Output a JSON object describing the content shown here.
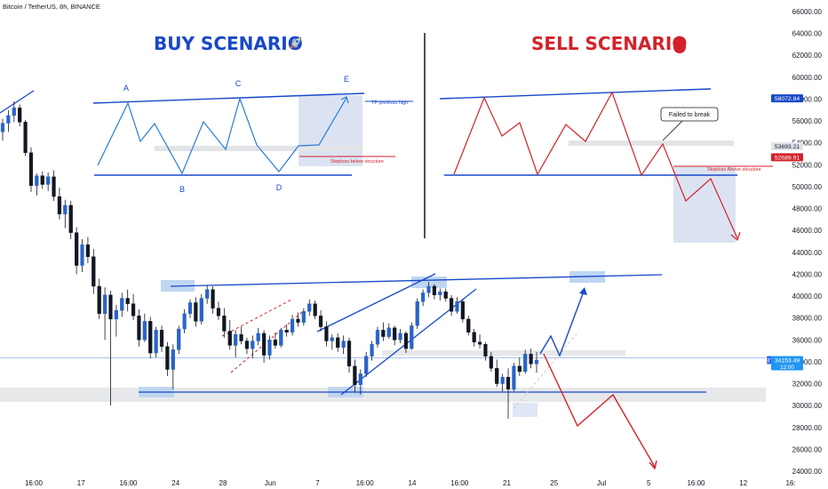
{
  "header": {
    "symbol_title": "Bitcoin / TetherUS, 8h, BINANCE"
  },
  "buy_scenario": {
    "title": "BUY SCENARIO",
    "icon": "rocket-icon",
    "color": "#1848c9",
    "point_labels": [
      "A",
      "B",
      "C",
      "D",
      "E"
    ],
    "tp_label": "TP previous high",
    "stop_label": "Stoploss below structure"
  },
  "sell_scenario": {
    "title": "SELL SCENARIO",
    "icon": "blood-drop-icon",
    "color": "#d3222a",
    "callout": "Failed to break",
    "stop_label": "Stoploss Above structure"
  },
  "price_axis": {
    "ticks": [
      "66000.00",
      "64000.00",
      "62000.00",
      "60000.00",
      "58000.00",
      "56000.00",
      "54000.00",
      "52000.00",
      "50000.00",
      "48000.00",
      "46000.00",
      "44000.00",
      "42000.00",
      "40000.00",
      "38000.00",
      "36000.00",
      "34000.00",
      "32000.00",
      "30000.00",
      "28000.00",
      "26000.00",
      "24000.00"
    ],
    "badges": [
      {
        "id": "level-58072",
        "text": "58072.84",
        "bg": "#1848c9",
        "fg": "#ffffff"
      },
      {
        "id": "level-53693",
        "text": "53693.21",
        "bg": "#e0e3eb",
        "fg": "#131722"
      },
      {
        "id": "level-52689",
        "text": "52689.91",
        "bg": "#d3222a",
        "fg": "#ffffff"
      },
      {
        "id": "symbol",
        "text": "BTCUSDT",
        "bg": "#2962ff",
        "fg": "#ffffff"
      },
      {
        "id": "last-price",
        "text": "34153.49",
        "sub": "12:00",
        "bg": "#2196f3",
        "fg": "#ffffff"
      }
    ]
  },
  "time_axis": {
    "ticks": [
      "16:00",
      "17",
      "16:00",
      "24",
      "28",
      "Jun",
      "7",
      "16:00",
      "14",
      "16:00",
      "21",
      "25",
      "Jul",
      "5",
      "16:00",
      "12",
      "16:"
    ]
  },
  "chart_data": {
    "type": "candlestick",
    "title": "Bitcoin / TetherUS, 8h, BINANCE",
    "ylim": [
      24000,
      66000
    ],
    "last_price": 34153.49,
    "candles": [
      [
        55000,
        56200,
        54200,
        55800
      ],
      [
        55800,
        57000,
        55000,
        56500
      ],
      [
        56500,
        57800,
        55900,
        57200
      ],
      [
        57200,
        57500,
        55500,
        55900
      ],
      [
        55900,
        56100,
        52800,
        53100
      ],
      [
        53100,
        53600,
        49500,
        50100
      ],
      [
        50100,
        51200,
        49200,
        51000
      ],
      [
        51000,
        51400,
        49800,
        50200
      ],
      [
        50200,
        51300,
        49600,
        50900
      ],
      [
        50900,
        51500,
        48700,
        49100
      ],
      [
        49100,
        49900,
        47000,
        47500
      ],
      [
        47500,
        48800,
        46200,
        48300
      ],
      [
        48300,
        48700,
        45200,
        45800
      ],
      [
        45800,
        46300,
        42000,
        42800
      ],
      [
        42800,
        45200,
        42200,
        44700
      ],
      [
        44700,
        45400,
        43000,
        43600
      ],
      [
        43600,
        44300,
        40200,
        40900
      ],
      [
        40900,
        41600,
        37900,
        38400
      ],
      [
        38400,
        40800,
        36000,
        40100
      ],
      [
        40100,
        40500,
        30000,
        37900
      ],
      [
        37900,
        39200,
        36300,
        38700
      ],
      [
        38700,
        40300,
        38100,
        39800
      ],
      [
        39800,
        40600,
        38600,
        39300
      ],
      [
        39300,
        40200,
        37800,
        38200
      ],
      [
        38200,
        38800,
        35400,
        36000
      ],
      [
        36000,
        38400,
        35800,
        37700
      ],
      [
        37700,
        38100,
        34300,
        34800
      ],
      [
        34800,
        37200,
        34400,
        36900
      ],
      [
        36900,
        37300,
        34900,
        35400
      ],
      [
        35400,
        35800,
        32700,
        33300
      ],
      [
        33300,
        35600,
        31500,
        35100
      ],
      [
        35100,
        37300,
        34700,
        37000
      ],
      [
        37000,
        38800,
        36600,
        38400
      ],
      [
        38400,
        39700,
        38000,
        39400
      ],
      [
        39400,
        39900,
        37200,
        37700
      ],
      [
        37700,
        40200,
        37400,
        39800
      ],
      [
        39800,
        41000,
        39300,
        40600
      ],
      [
        40600,
        40900,
        38400,
        38900
      ],
      [
        38900,
        39500,
        37800,
        38200
      ],
      [
        38200,
        38900,
        36200,
        36800
      ],
      [
        36800,
        37800,
        35100,
        35500
      ],
      [
        35500,
        36900,
        34400,
        36500
      ],
      [
        36500,
        37200,
        35600,
        35900
      ],
      [
        35900,
        36200,
        34700,
        35200
      ],
      [
        35200,
        36400,
        34300,
        35900
      ],
      [
        35900,
        37100,
        35500,
        36600
      ],
      [
        36600,
        36900,
        33900,
        34600
      ],
      [
        34600,
        36400,
        34200,
        36000
      ],
      [
        36000,
        36700,
        35200,
        35500
      ],
      [
        35500,
        37100,
        35300,
        36900
      ],
      [
        36900,
        37400,
        36300,
        36700
      ],
      [
        36700,
        38300,
        36400,
        37900
      ],
      [
        37900,
        38500,
        37200,
        37600
      ],
      [
        37600,
        38900,
        37300,
        38600
      ],
      [
        38600,
        39700,
        38200,
        39300
      ],
      [
        39300,
        39600,
        37900,
        38200
      ],
      [
        38200,
        38700,
        36800,
        37200
      ],
      [
        37200,
        37700,
        35400,
        35900
      ],
      [
        35900,
        36500,
        35100,
        36200
      ],
      [
        36200,
        36600,
        34900,
        35300
      ],
      [
        35300,
        36400,
        34700,
        35900
      ],
      [
        35900,
        36200,
        33000,
        33600
      ],
      [
        33600,
        34200,
        31200,
        31900
      ],
      [
        31900,
        33300,
        31000,
        32900
      ],
      [
        32900,
        34900,
        32600,
        34500
      ],
      [
        34500,
        35900,
        34100,
        35600
      ],
      [
        35600,
        37200,
        35300,
        36900
      ],
      [
        36900,
        37600,
        35900,
        36300
      ],
      [
        36300,
        37500,
        36100,
        37100
      ],
      [
        37100,
        37300,
        35500,
        36000
      ],
      [
        36000,
        37000,
        35700,
        36600
      ],
      [
        36600,
        36800,
        34800,
        35200
      ],
      [
        35200,
        37600,
        35100,
        37300
      ],
      [
        37300,
        39800,
        37000,
        39500
      ],
      [
        39500,
        40600,
        39100,
        40300
      ],
      [
        40300,
        41300,
        39900,
        40900
      ],
      [
        40900,
        41100,
        39700,
        40100
      ],
      [
        40100,
        40700,
        39600,
        40400
      ],
      [
        40400,
        40700,
        39500,
        39800
      ],
      [
        39800,
        40100,
        38200,
        38600
      ],
      [
        38600,
        39900,
        38400,
        39500
      ],
      [
        39500,
        39700,
        37600,
        37900
      ],
      [
        37900,
        38200,
        36400,
        36700
      ],
      [
        36700,
        37000,
        35400,
        35800
      ],
      [
        35800,
        36500,
        35200,
        35600
      ],
      [
        35600,
        35800,
        34100,
        34500
      ],
      [
        34500,
        34900,
        33100,
        33400
      ],
      [
        33400,
        34200,
        31700,
        32000
      ],
      [
        32000,
        32900,
        31300,
        32600
      ],
      [
        32600,
        33400,
        28800,
        31500
      ],
      [
        31500,
        33900,
        31300,
        33600
      ],
      [
        33600,
        34400,
        32700,
        33100
      ],
      [
        33100,
        35100,
        32900,
        34700
      ],
      [
        34700,
        35200,
        33400,
        33800
      ],
      [
        33800,
        34900,
        33000,
        34153
      ]
    ],
    "buy_scenario_path": [
      "A",
      "B",
      "C",
      "D",
      "E"
    ],
    "support_level": 31000,
    "resistance_level": 41000
  }
}
